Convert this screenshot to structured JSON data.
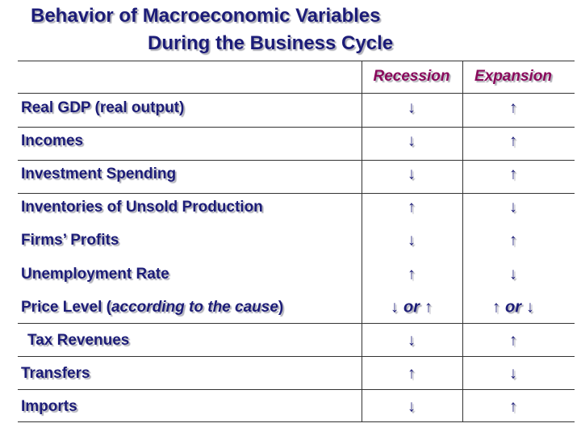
{
  "title": {
    "line1": "Behavior of Macroeconomic Variables",
    "line2": "During the Business Cycle"
  },
  "table": {
    "header": [
      "Recession",
      "Expansion"
    ],
    "rows": [
      {
        "label": "Real GDP (real output)",
        "recession": "↓",
        "expansion": "↑"
      },
      {
        "label": "Incomes",
        "recession": "↓",
        "expansion": "↑"
      },
      {
        "label": "Investment Spending",
        "recession": "↓",
        "expansion": "↑"
      },
      {
        "label": "Inventories of Unsold Production",
        "recession": "↑",
        "expansion": "↓"
      },
      {
        "label": "Firms’ Profits",
        "recession": "↓",
        "expansion": "↑"
      },
      {
        "label": "Unemployment Rate",
        "recession": "↑",
        "expansion": "↓"
      },
      {
        "label": [
          "Price Level (",
          "according to the cause",
          ")"
        ],
        "recession": [
          "↓",
          "or",
          "↑"
        ],
        "expansion": [
          "↑",
          "or",
          "↓"
        ]
      },
      {
        "label": "Tax Revenues",
        "recession": "↓",
        "expansion": "↑"
      },
      {
        "label": "Transfers",
        "recession": "↑",
        "expansion": "↓"
      },
      {
        "label": "Imports",
        "recession": "↓",
        "expansion": "↑"
      }
    ]
  }
}
